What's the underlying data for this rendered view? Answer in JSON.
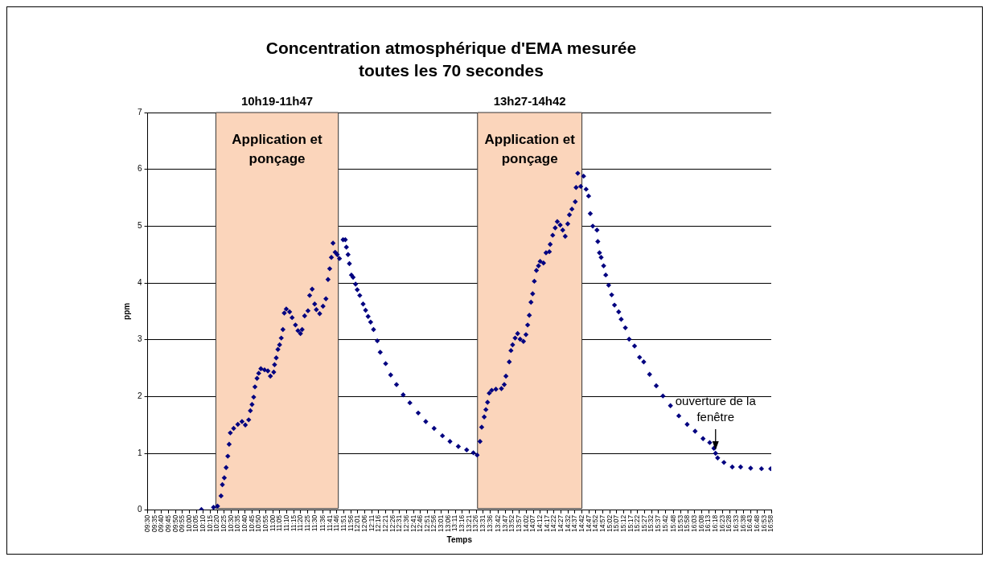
{
  "chart_data": {
    "type": "scatter",
    "title": "Concentration atmosphérique d'EMA mesurée toutes les 70 secondes",
    "xlabel": "Temps",
    "ylabel": "ppm",
    "x": [
      10.144,
      10.289,
      10.337,
      10.379,
      10.395,
      10.418,
      10.44,
      10.46,
      10.476,
      10.49,
      10.53,
      10.58,
      10.63,
      10.67,
      10.71,
      10.73,
      10.75,
      10.77,
      10.785,
      10.81,
      10.83,
      10.856,
      10.9,
      10.94,
      10.97,
      11.01,
      11.02,
      11.04,
      11.06,
      11.08,
      11.1,
      11.12,
      11.136,
      11.16,
      11.2,
      11.23,
      11.27,
      11.3,
      11.33,
      11.35,
      11.38,
      11.42,
      11.44,
      11.47,
      11.5,
      11.52,
      11.56,
      11.6,
      11.635,
      11.66,
      11.68,
      11.7,
      11.72,
      11.745,
      11.77,
      11.797,
      11.84,
      11.867,
      11.88,
      11.9,
      11.916,
      11.94,
      11.96,
      11.99,
      12.01,
      12.04,
      12.08,
      12.11,
      12.14,
      12.17,
      12.205,
      12.25,
      12.285,
      12.35,
      12.41,
      12.48,
      12.56,
      12.64,
      12.74,
      12.83,
      12.93,
      13.03,
      13.12,
      13.22,
      13.32,
      13.4,
      13.445,
      13.48,
      13.5,
      13.53,
      13.55,
      13.57,
      13.59,
      13.62,
      13.67,
      13.736,
      13.77,
      13.79,
      13.83,
      13.85,
      13.87,
      13.9,
      13.93,
      13.96,
      14.0,
      14.03,
      14.05,
      14.07,
      14.09,
      14.11,
      14.13,
      14.155,
      14.18,
      14.2,
      14.24,
      14.27,
      14.31,
      14.32,
      14.35,
      14.38,
      14.405,
      14.44,
      14.47,
      14.5,
      14.53,
      14.55,
      14.58,
      14.62,
      14.63,
      14.65,
      14.685,
      14.72,
      14.75,
      14.78,
      14.8,
      14.83,
      14.88,
      14.89,
      14.91,
      14.93,
      14.96,
      14.985,
      15.02,
      15.056,
      15.09,
      15.14,
      15.17,
      15.22,
      15.265,
      15.33,
      15.39,
      15.44,
      15.51,
      15.59,
      15.67,
      15.76,
      15.86,
      15.96,
      16.055,
      16.15,
      16.23,
      16.28,
      16.3,
      16.325,
      16.4,
      16.5,
      16.6,
      16.72,
      16.85,
      16.96
    ],
    "series": [
      {
        "color": "#000080",
        "values": [
          0.01,
          0.05,
          0.07,
          0.25,
          0.45,
          0.57,
          0.75,
          0.95,
          1.16,
          1.36,
          1.44,
          1.51,
          1.56,
          1.5,
          1.59,
          1.75,
          1.86,
          1.99,
          2.17,
          2.32,
          2.41,
          2.49,
          2.47,
          2.45,
          2.36,
          2.43,
          2.56,
          2.68,
          2.83,
          2.91,
          3.03,
          3.18,
          3.47,
          3.54,
          3.49,
          3.39,
          3.26,
          3.16,
          3.11,
          3.18,
          3.42,
          3.51,
          3.78,
          3.89,
          3.63,
          3.53,
          3.46,
          3.59,
          3.72,
          4.06,
          4.25,
          4.45,
          4.7,
          4.54,
          4.5,
          4.43,
          4.76,
          4.76,
          4.63,
          4.5,
          4.34,
          4.14,
          4.1,
          3.98,
          3.88,
          3.78,
          3.63,
          3.52,
          3.41,
          3.31,
          3.18,
          2.98,
          2.78,
          2.58,
          2.38,
          2.21,
          2.03,
          1.89,
          1.71,
          1.56,
          1.44,
          1.31,
          1.21,
          1.12,
          1.06,
          1.01,
          0.97,
          1.21,
          1.46,
          1.64,
          1.77,
          1.9,
          2.06,
          2.11,
          2.13,
          2.14,
          2.21,
          2.36,
          2.61,
          2.81,
          2.91,
          3.03,
          3.11,
          3.01,
          2.97,
          3.09,
          3.26,
          3.43,
          3.66,
          3.81,
          4.03,
          4.22,
          4.3,
          4.38,
          4.35,
          4.53,
          4.55,
          4.68,
          4.84,
          4.97,
          5.08,
          5.02,
          4.93,
          4.82,
          5.04,
          5.2,
          5.3,
          5.43,
          5.68,
          5.93,
          5.7,
          5.88,
          5.65,
          5.53,
          5.22,
          5.0,
          4.93,
          4.73,
          4.53,
          4.45,
          4.3,
          4.14,
          3.96,
          3.79,
          3.61,
          3.49,
          3.36,
          3.21,
          3.01,
          2.89,
          2.69,
          2.61,
          2.39,
          2.19,
          2.01,
          1.84,
          1.66,
          1.51,
          1.39,
          1.26,
          1.19,
          1.09,
          1.0,
          0.92,
          0.84,
          0.76,
          0.76,
          0.74,
          0.73,
          0.73
        ]
      }
    ],
    "marker": "diamond",
    "grid": "y",
    "legend": false,
    "xlim": [
      9.5,
      16.9667
    ],
    "xticks": [
      {
        "value": 9.5,
        "label": "09:30"
      },
      {
        "value": 9.5833,
        "label": "09:35"
      },
      {
        "value": 9.6667,
        "label": "09:40"
      },
      {
        "value": 9.75,
        "label": "09:45"
      },
      {
        "value": 9.8333,
        "label": "09:50"
      },
      {
        "value": 9.9167,
        "label": "09:55"
      },
      {
        "value": 10,
        "label": "10:00"
      },
      {
        "value": 10.0833,
        "label": "10:05"
      },
      {
        "value": 10.1667,
        "label": "10:10"
      },
      {
        "value": 10.25,
        "label": "10:15"
      },
      {
        "value": 10.3333,
        "label": "10:20"
      },
      {
        "value": 10.4167,
        "label": "10:25"
      },
      {
        "value": 10.5,
        "label": "10:30"
      },
      {
        "value": 10.5833,
        "label": "10:35"
      },
      {
        "value": 10.6667,
        "label": "10:40"
      },
      {
        "value": 10.75,
        "label": "10:45"
      },
      {
        "value": 10.8333,
        "label": "10:50"
      },
      {
        "value": 10.9167,
        "label": "10:55"
      },
      {
        "value": 11,
        "label": "11:00"
      },
      {
        "value": 11.0833,
        "label": "11:05"
      },
      {
        "value": 11.1667,
        "label": "11:10"
      },
      {
        "value": 11.25,
        "label": "11:15"
      },
      {
        "value": 11.3333,
        "label": "11:20"
      },
      {
        "value": 11.4167,
        "label": "11:25"
      },
      {
        "value": 11.5,
        "label": "11:30"
      },
      {
        "value": 11.6,
        "label": "11:36"
      },
      {
        "value": 11.6833,
        "label": "11:41"
      },
      {
        "value": 11.7667,
        "label": "11:46"
      },
      {
        "value": 11.85,
        "label": "11:51"
      },
      {
        "value": 11.9333,
        "label": "11:56"
      },
      {
        "value": 12.0167,
        "label": "12:01"
      },
      {
        "value": 12.1,
        "label": "12:06"
      },
      {
        "value": 12.1833,
        "label": "12:11"
      },
      {
        "value": 12.2667,
        "label": "12:16"
      },
      {
        "value": 12.35,
        "label": "12:21"
      },
      {
        "value": 12.4333,
        "label": "12:26"
      },
      {
        "value": 12.5167,
        "label": "12:31"
      },
      {
        "value": 12.6,
        "label": "12:36"
      },
      {
        "value": 12.6833,
        "label": "12:41"
      },
      {
        "value": 12.7667,
        "label": "12:46"
      },
      {
        "value": 12.85,
        "label": "12:51"
      },
      {
        "value": 12.9333,
        "label": "12:56"
      },
      {
        "value": 13.0167,
        "label": "13:01"
      },
      {
        "value": 13.1,
        "label": "13:06"
      },
      {
        "value": 13.1833,
        "label": "13:11"
      },
      {
        "value": 13.2667,
        "label": "13:16"
      },
      {
        "value": 13.35,
        "label": "13:21"
      },
      {
        "value": 13.4333,
        "label": "13:26"
      },
      {
        "value": 13.5167,
        "label": "13:31"
      },
      {
        "value": 13.6,
        "label": "13:36"
      },
      {
        "value": 13.7,
        "label": "13:42"
      },
      {
        "value": 13.7833,
        "label": "13:47"
      },
      {
        "value": 13.8667,
        "label": "13:52"
      },
      {
        "value": 13.95,
        "label": "13:57"
      },
      {
        "value": 14.0333,
        "label": "14:02"
      },
      {
        "value": 14.1167,
        "label": "14:07"
      },
      {
        "value": 14.2,
        "label": "14:12"
      },
      {
        "value": 14.2833,
        "label": "14:17"
      },
      {
        "value": 14.3667,
        "label": "14:22"
      },
      {
        "value": 14.45,
        "label": "14:27"
      },
      {
        "value": 14.5333,
        "label": "14:32"
      },
      {
        "value": 14.6167,
        "label": "14:37"
      },
      {
        "value": 14.7,
        "label": "14:42"
      },
      {
        "value": 14.7833,
        "label": "14:47"
      },
      {
        "value": 14.8667,
        "label": "14:52"
      },
      {
        "value": 14.95,
        "label": "14:57"
      },
      {
        "value": 15.0333,
        "label": "15:02"
      },
      {
        "value": 15.1167,
        "label": "15:07"
      },
      {
        "value": 15.2,
        "label": "15:12"
      },
      {
        "value": 15.2833,
        "label": "15:17"
      },
      {
        "value": 15.3667,
        "label": "15:22"
      },
      {
        "value": 15.45,
        "label": "15:27"
      },
      {
        "value": 15.5333,
        "label": "15:32"
      },
      {
        "value": 15.6167,
        "label": "15:37"
      },
      {
        "value": 15.7,
        "label": "15:42"
      },
      {
        "value": 15.8,
        "label": "15:48"
      },
      {
        "value": 15.8833,
        "label": "15:53"
      },
      {
        "value": 15.9667,
        "label": "15:58"
      },
      {
        "value": 16.05,
        "label": "16:03"
      },
      {
        "value": 16.1333,
        "label": "16:08"
      },
      {
        "value": 16.2167,
        "label": "16:13"
      },
      {
        "value": 16.3,
        "label": "16:18"
      },
      {
        "value": 16.3833,
        "label": "16:23"
      },
      {
        "value": 16.4667,
        "label": "16:28"
      },
      {
        "value": 16.55,
        "label": "16:33"
      },
      {
        "value": 16.6333,
        "label": "16:38"
      },
      {
        "value": 16.7167,
        "label": "16:43"
      },
      {
        "value": 16.8,
        "label": "16:48"
      },
      {
        "value": 16.8833,
        "label": "16:53"
      },
      {
        "value": 16.9667,
        "label": "16:58"
      }
    ],
    "ylim": [
      0,
      7
    ],
    "yticks": [
      0,
      1,
      2,
      3,
      4,
      5,
      6,
      7
    ],
    "bands": [
      {
        "axis": "x",
        "from": 10.3167,
        "to": 11.7833,
        "label": "Application et ponçage",
        "color": "#fbd5bb"
      },
      {
        "axis": "x",
        "from": 13.45,
        "to": 14.7,
        "label": "Application et ponçage",
        "color": "#fbd5bb"
      }
    ],
    "annotations": [
      {
        "text": "10h19-11h47",
        "x": 11.05,
        "y": 7
      },
      {
        "text": "13h27-14h42",
        "x": 14.075,
        "y": 7
      },
      {
        "text": "ouverture de la fenêtre",
        "x": 16.3,
        "y": 1.0
      }
    ]
  }
}
